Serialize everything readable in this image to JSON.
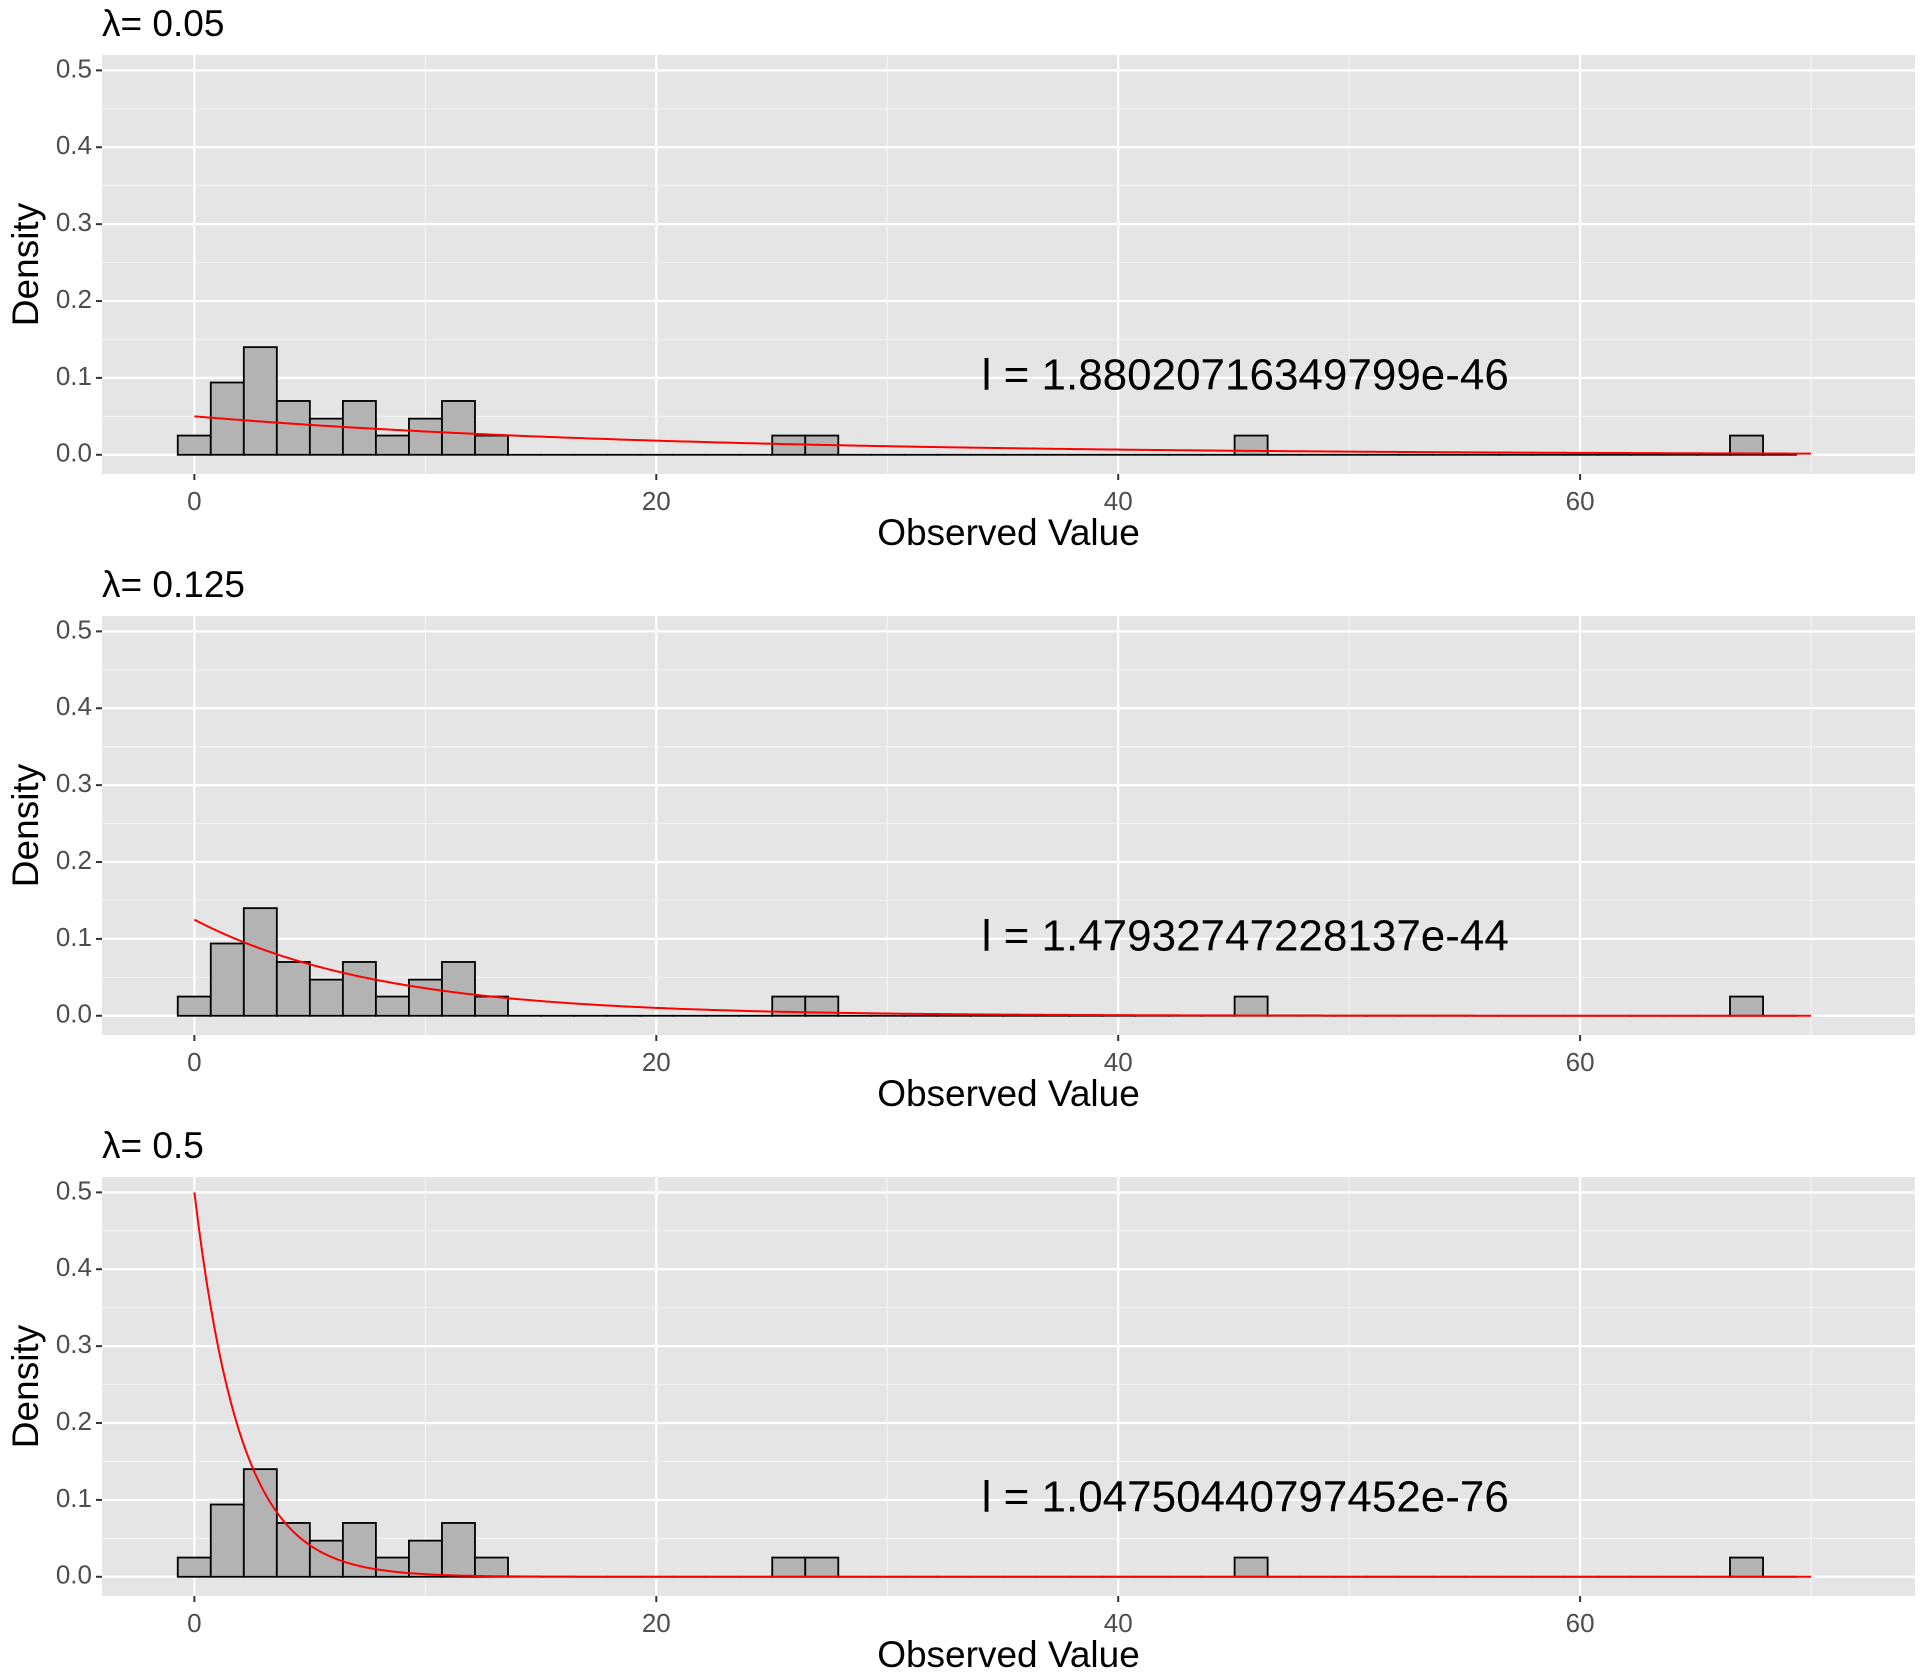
{
  "chart_data": [
    {
      "type": "histogram",
      "title": "λ= 0.05",
      "xlabel": "Observed Value",
      "ylabel": "Density",
      "xlim": [
        -4,
        74.5
      ],
      "ylim": [
        -0.025,
        0.52
      ],
      "x_ticks": [
        0,
        20,
        40,
        60
      ],
      "y_ticks": [
        0.0,
        0.1,
        0.2,
        0.3,
        0.4,
        0.5
      ],
      "tick_labels_x": [
        "0",
        "20",
        "40",
        "60"
      ],
      "tick_labels_y": [
        "0.0",
        "0.1",
        "0.2",
        "0.3",
        "0.4",
        "0.5"
      ],
      "grid": true,
      "bins": {
        "start": -0.72,
        "width": 1.43,
        "count": 49,
        "values": [
          0.025,
          0.094,
          0.14,
          0.07,
          0.047,
          0.07,
          0.025,
          0.047,
          0.07,
          0.025,
          0,
          0,
          0,
          0,
          0,
          0,
          0,
          0,
          0.025,
          0.025,
          0,
          0,
          0,
          0,
          0,
          0,
          0,
          0,
          0,
          0,
          0,
          0,
          0.025,
          0,
          0,
          0,
          0,
          0,
          0,
          0,
          0,
          0,
          0,
          0,
          0,
          0,
          0,
          0.025,
          0
        ]
      },
      "curve": {
        "type": "exponential",
        "rate": 0.05,
        "x_range": [
          0,
          70
        ],
        "color": "#ff0000"
      },
      "annotation": {
        "text": "l = 1.88020716349799e-46",
        "x": 45.5,
        "y": 0.1
      },
      "bar_fill": "#b3b3b3",
      "bar_stroke": "#000000"
    },
    {
      "type": "histogram",
      "title": "λ= 0.125",
      "xlabel": "Observed Value",
      "ylabel": "Density",
      "xlim": [
        -4,
        74.5
      ],
      "ylim": [
        -0.025,
        0.52
      ],
      "x_ticks": [
        0,
        20,
        40,
        60
      ],
      "y_ticks": [
        0.0,
        0.1,
        0.2,
        0.3,
        0.4,
        0.5
      ],
      "tick_labels_x": [
        "0",
        "20",
        "40",
        "60"
      ],
      "tick_labels_y": [
        "0.0",
        "0.1",
        "0.2",
        "0.3",
        "0.4",
        "0.5"
      ],
      "grid": true,
      "bins": {
        "start": -0.72,
        "width": 1.43,
        "count": 49,
        "values": [
          0.025,
          0.094,
          0.14,
          0.07,
          0.047,
          0.07,
          0.025,
          0.047,
          0.07,
          0.025,
          0,
          0,
          0,
          0,
          0,
          0,
          0,
          0,
          0.025,
          0.025,
          0,
          0,
          0,
          0,
          0,
          0,
          0,
          0,
          0,
          0,
          0,
          0,
          0.025,
          0,
          0,
          0,
          0,
          0,
          0,
          0,
          0,
          0,
          0,
          0,
          0,
          0,
          0,
          0.025,
          0
        ]
      },
      "curve": {
        "type": "exponential",
        "rate": 0.125,
        "x_range": [
          0,
          70
        ],
        "color": "#ff0000"
      },
      "annotation": {
        "text": "l = 1.47932747228137e-44",
        "x": 45.5,
        "y": 0.1
      },
      "bar_fill": "#b3b3b3",
      "bar_stroke": "#000000"
    },
    {
      "type": "histogram",
      "title": "λ= 0.5",
      "xlabel": "Observed Value",
      "ylabel": "Density",
      "xlim": [
        -4,
        74.5
      ],
      "ylim": [
        -0.025,
        0.52
      ],
      "x_ticks": [
        0,
        20,
        40,
        60
      ],
      "y_ticks": [
        0.0,
        0.1,
        0.2,
        0.3,
        0.4,
        0.5
      ],
      "tick_labels_x": [
        "0",
        "20",
        "40",
        "60"
      ],
      "tick_labels_y": [
        "0.0",
        "0.1",
        "0.2",
        "0.3",
        "0.4",
        "0.5"
      ],
      "grid": true,
      "bins": {
        "start": -0.72,
        "width": 1.43,
        "count": 49,
        "values": [
          0.025,
          0.094,
          0.14,
          0.07,
          0.047,
          0.07,
          0.025,
          0.047,
          0.07,
          0.025,
          0,
          0,
          0,
          0,
          0,
          0,
          0,
          0,
          0.025,
          0.025,
          0,
          0,
          0,
          0,
          0,
          0,
          0,
          0,
          0,
          0,
          0,
          0,
          0.025,
          0,
          0,
          0,
          0,
          0,
          0,
          0,
          0,
          0,
          0,
          0,
          0,
          0,
          0,
          0.025,
          0
        ]
      },
      "curve": {
        "type": "exponential",
        "rate": 0.5,
        "x_range": [
          0,
          70
        ],
        "color": "#ff0000"
      },
      "annotation": {
        "text": "l = 1.04750440797452e-76",
        "x": 45.5,
        "y": 0.1
      },
      "bar_fill": "#b3b3b3",
      "bar_stroke": "#000000"
    }
  ]
}
